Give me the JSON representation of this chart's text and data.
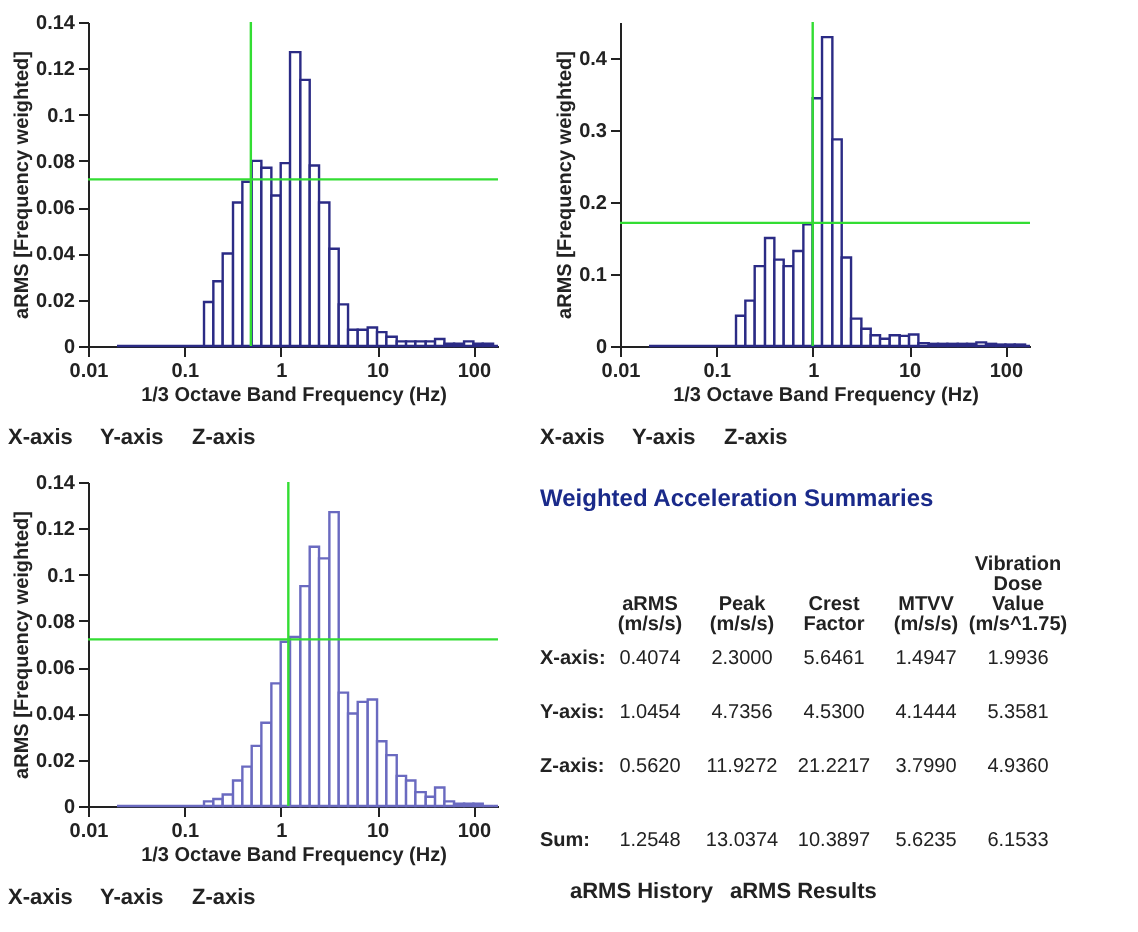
{
  "chart_data": [
    {
      "type": "histogram",
      "xlabel": "1/3 Octave Band Frequency (Hz)",
      "ylabel": "aRMS [Frequency weighted]",
      "log": "x",
      "color": "#2b2b85",
      "bins": [
        0.02,
        0.16,
        0.2,
        0.25,
        0.32,
        0.4,
        0.5,
        0.63,
        0.8,
        1,
        1.25,
        1.6,
        2,
        2.5,
        3.2,
        4,
        5,
        6.3,
        8,
        10,
        12.5,
        16,
        20,
        25,
        32,
        40,
        50,
        63,
        80,
        100,
        125,
        160,
        180
      ],
      "values": [
        0,
        0.019,
        0.028,
        0.04,
        0.062,
        0.071,
        0.08,
        0.077,
        0.065,
        0.079,
        0.127,
        0.115,
        0.078,
        0.062,
        0.042,
        0.018,
        0.007,
        0.007,
        0.008,
        0.006,
        0.004,
        0.002,
        0.002,
        0.002,
        0.002,
        0.003,
        0.001,
        0.001,
        0.002,
        0.001,
        0.001,
        0
      ],
      "xlim": [
        0.01,
        180
      ],
      "xticks": [
        0.01,
        0.1,
        1,
        10,
        100
      ],
      "ylim": [
        0,
        0.14
      ],
      "yticks": [
        0,
        0.02,
        0.04,
        0.06,
        0.08,
        0.1,
        0.12,
        0.14
      ],
      "ref_lines": [
        {
          "axis": "x",
          "value": 0.49,
          "color": "#33dd33"
        },
        {
          "axis": "y",
          "value": 0.072,
          "color": "#33dd33"
        }
      ],
      "annotations": [
        "X-axis",
        "Y-axis",
        "Z-axis"
      ]
    },
    {
      "type": "histogram",
      "xlabel": "1/3 Octave Band Frequency (Hz)",
      "ylabel": "aRMS [Frequency weighted]",
      "log": "x",
      "color": "#2b2b85",
      "bins": [
        0.02,
        0.16,
        0.2,
        0.25,
        0.32,
        0.4,
        0.5,
        0.63,
        0.8,
        1,
        1.25,
        1.6,
        2,
        2.5,
        3.2,
        4,
        5,
        6.3,
        8,
        10,
        12.5,
        16,
        20,
        25,
        32,
        40,
        50,
        63,
        80,
        100,
        125,
        160,
        180
      ],
      "values": [
        0,
        0.042,
        0.063,
        0.111,
        0.15,
        0.12,
        0.111,
        0.132,
        0.169,
        0.344,
        0.429,
        0.287,
        0.123,
        0.038,
        0.024,
        0.015,
        0.01,
        0.015,
        0.014,
        0.016,
        0.004,
        0.003,
        0.003,
        0.003,
        0.003,
        0.003,
        0.005,
        0.003,
        0.002,
        0.002,
        0.002,
        0
      ],
      "xlim": [
        0.01,
        180
      ],
      "xticks": [
        0.01,
        0.1,
        1,
        10,
        100
      ],
      "ylim": [
        0,
        0.45
      ],
      "yticks": [
        0,
        0.1,
        0.2,
        0.3,
        0.4
      ],
      "ref_lines": [
        {
          "axis": "x",
          "value": 1,
          "color": "#33dd33"
        },
        {
          "axis": "y",
          "value": 0.171,
          "color": "#33dd33"
        }
      ],
      "annotations": [
        "X-axis",
        "Y-axis",
        "Z-axis"
      ]
    },
    {
      "type": "histogram",
      "xlabel": "1/3 Octave Band Frequency (Hz)",
      "ylabel": "aRMS [Frequency weighted]",
      "log": "x",
      "color": "#6a6ac0",
      "bins": [
        0.02,
        0.16,
        0.2,
        0.25,
        0.32,
        0.4,
        0.5,
        0.63,
        0.8,
        1,
        1.25,
        1.6,
        2,
        2.5,
        3.2,
        4,
        5,
        6.3,
        8,
        10,
        12.5,
        16,
        20,
        25,
        32,
        40,
        50,
        63,
        80,
        100,
        125,
        160,
        180
      ],
      "values": [
        0,
        0.002,
        0.003,
        0.005,
        0.011,
        0.017,
        0.026,
        0.036,
        0.053,
        0.071,
        0.073,
        0.095,
        0.112,
        0.107,
        0.127,
        0.049,
        0.04,
        0.045,
        0.046,
        0.028,
        0.022,
        0.013,
        0.011,
        0.006,
        0.004,
        0.008,
        0.002,
        0.001,
        0.001,
        0.001,
        0,
        0
      ],
      "xlim": [
        0.01,
        180
      ],
      "xticks": [
        0.01,
        0.1,
        1,
        10,
        100
      ],
      "ylim": [
        0,
        0.14
      ],
      "yticks": [
        0,
        0.02,
        0.04,
        0.06,
        0.08,
        0.1,
        0.12,
        0.14
      ],
      "ref_lines": [
        {
          "axis": "x",
          "value": 1.2,
          "color": "#33dd33"
        },
        {
          "axis": "y",
          "value": 0.072,
          "color": "#33dd33"
        }
      ],
      "annotations": [
        "X-axis",
        "Y-axis",
        "Z-axis"
      ]
    },
    {
      "type": "other",
      "title": "Weighted Acceleration Summaries",
      "categories": [
        "aRMS (m/s/s)",
        "Peak (m/s/s)",
        "Crest Factor",
        "MTVV (m/s/s)",
        "Vibration Dose Value (m/s^1.75)"
      ],
      "y_categories": [
        "X-axis:",
        "Y-axis:",
        "Z-axis:",
        "Sum:"
      ],
      "annotations": [
        "0.4074",
        "2.3000",
        "5.6461",
        "1.4947",
        "1.9936",
        "1.0454",
        "4.7356",
        "4.5300",
        "4.1444",
        "5.3581",
        "0.5620",
        "11.9272",
        "21.2217",
        "3.7990",
        "4.9360",
        "1.2548",
        "13.0374",
        "10.3897",
        "5.6235",
        "6.1533",
        "aRMS History",
        "aRMS Results"
      ]
    }
  ]
}
